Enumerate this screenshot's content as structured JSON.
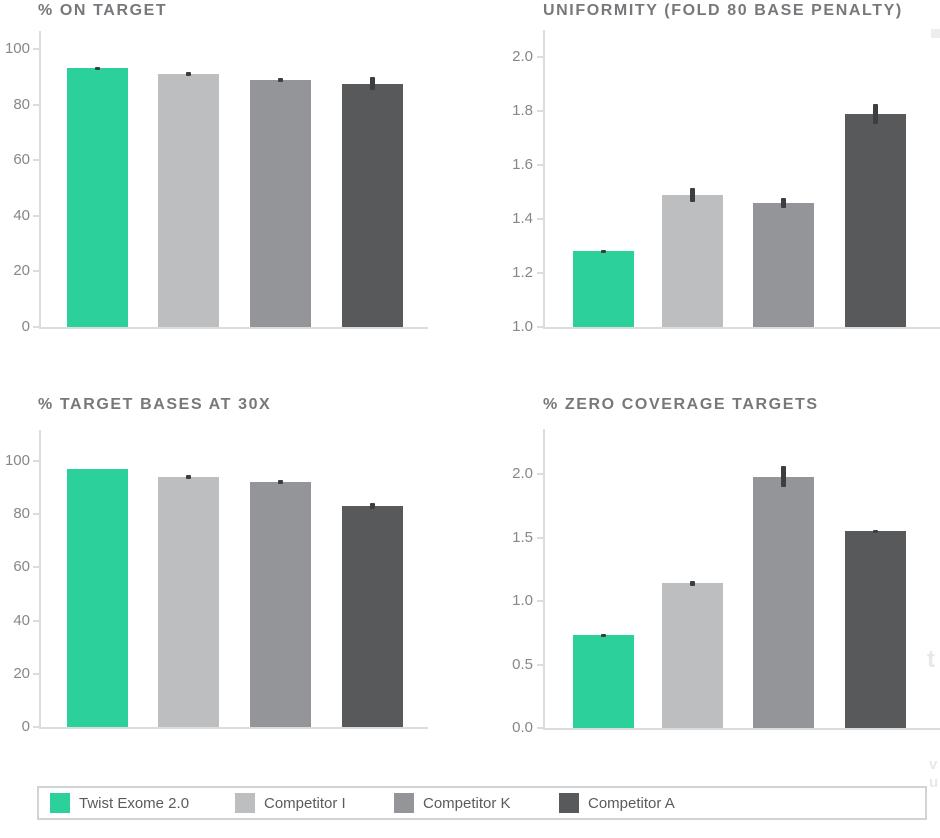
{
  "palette": {
    "green": "#2BD09A",
    "light_gray": "#BCBEC0",
    "mid_gray": "#939598",
    "dark_gray": "#58595B",
    "axis_line": "#DBDCDE",
    "error_bar": "#3D3E40",
    "title_text": "#77787B",
    "tick_text": "#85878A",
    "legend_text": "#5A5B5E",
    "legend_border": "#D2D3D5"
  },
  "legend": {
    "items": [
      {
        "label": "Twist Exome 2.0",
        "color": "#2BD09A"
      },
      {
        "label": "Competitor I",
        "color": "#BCBEC0"
      },
      {
        "label": "Competitor K",
        "color": "#939598"
      },
      {
        "label": "Competitor A",
        "color": "#58595B"
      }
    ]
  },
  "chart_data": [
    {
      "id": "on_target",
      "type": "bar",
      "title": "% ON TARGET",
      "categories": [
        "Twist Exome 2.0",
        "Competitor I",
        "Competitor K",
        "Competitor A"
      ],
      "values": [
        93,
        91,
        89,
        87.5
      ],
      "errors": [
        0.7,
        0.7,
        0.7,
        2.3
      ],
      "ylim": [
        0,
        106
      ],
      "xlabel": "",
      "ylabel": "",
      "grid": false,
      "yticks": [
        {
          "label": "100",
          "value": 100
        },
        {
          "label": "80",
          "value": 80
        },
        {
          "label": "60",
          "value": 60
        },
        {
          "label": "40",
          "value": 40
        },
        {
          "label": "20",
          "value": 20
        },
        {
          "label": "0",
          "value": 0
        }
      ]
    },
    {
      "id": "uniformity",
      "type": "bar",
      "title": "UNIFORMITY (FOLD 80 BASE PENALTY)",
      "categories": [
        "Twist Exome 2.0",
        "Competitor I",
        "Competitor K",
        "Competitor A"
      ],
      "values": [
        1.28,
        1.49,
        1.46,
        1.79
      ],
      "errors": [
        0.006,
        0.026,
        0.018,
        0.037
      ],
      "ylim": [
        1.0,
        2.1
      ],
      "xlabel": "",
      "ylabel": "",
      "grid": false,
      "yticks": [
        {
          "label": "2.0",
          "value": 2.0
        },
        {
          "label": "1.8",
          "value": 1.8
        },
        {
          "label": "1.6",
          "value": 1.6
        },
        {
          "label": "1.4",
          "value": 1.4
        },
        {
          "label": "1.2",
          "value": 1.2
        },
        {
          "label": "1.0",
          "value": 1.0
        }
      ]
    },
    {
      "id": "bases_30x",
      "type": "bar",
      "title": "% TARGET BASES AT 30X",
      "categories": [
        "Twist Exome 2.0",
        "Competitor I",
        "Competitor K",
        "Competitor A"
      ],
      "values": [
        97,
        94,
        92,
        83
      ],
      "errors": [
        0,
        0.8,
        0.8,
        1.1
      ],
      "ylim": [
        0,
        111
      ],
      "xlabel": "",
      "ylabel": "",
      "grid": false,
      "yticks": [
        {
          "label": "100",
          "value": 100
        },
        {
          "label": "80",
          "value": 80
        },
        {
          "label": "60",
          "value": 60
        },
        {
          "label": "40",
          "value": 40
        },
        {
          "label": "20",
          "value": 20
        },
        {
          "label": "0",
          "value": 0
        }
      ]
    },
    {
      "id": "zero_coverage",
      "type": "bar",
      "title": "% ZERO COVERAGE TARGETS",
      "categories": [
        "Twist Exome 2.0",
        "Competitor I",
        "Competitor K",
        "Competitor A"
      ],
      "values": [
        0.73,
        1.14,
        1.98,
        1.55
      ],
      "errors": [
        0.012,
        0.02,
        0.08,
        0.012
      ],
      "ylim": [
        0,
        2.35
      ],
      "xlabel": "",
      "ylabel": "",
      "grid": false,
      "yticks": [
        {
          "label": "2.0",
          "value": 2.0
        },
        {
          "label": "1.5",
          "value": 1.5
        },
        {
          "label": "1.0",
          "value": 1.0
        },
        {
          "label": "0.5",
          "value": 0.5
        },
        {
          "label": "0.0",
          "value": 0.0
        }
      ]
    }
  ],
  "edge_fragments": {
    "square": "",
    "t_glyph": "t",
    "v_glyph": "v",
    "u_glyph": "u"
  }
}
